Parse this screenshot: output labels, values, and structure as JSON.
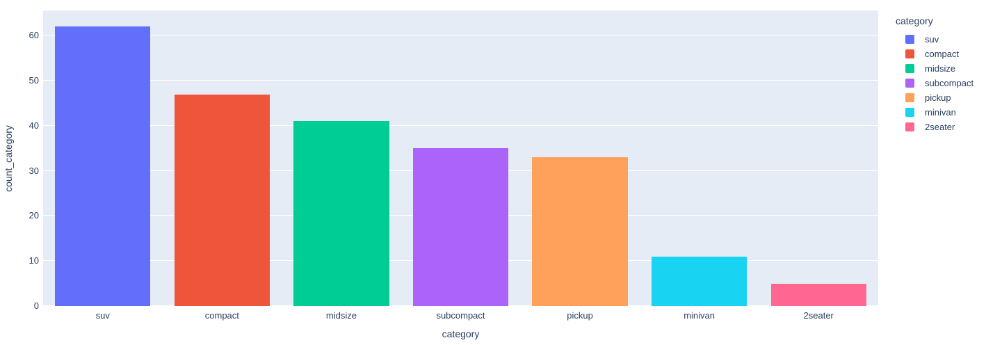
{
  "chart_data": {
    "type": "bar",
    "title": "",
    "xlabel": "category",
    "ylabel": "count_category",
    "categories": [
      "suv",
      "compact",
      "midsize",
      "subcompact",
      "pickup",
      "minivan",
      "2seater"
    ],
    "values": [
      62,
      47,
      41,
      35,
      33,
      11,
      5
    ],
    "colors": [
      "#636EFA",
      "#EF553B",
      "#00CC96",
      "#AB63FA",
      "#FFA15A",
      "#19D3F3",
      "#FF6692"
    ],
    "ylim": [
      0,
      65.6
    ],
    "yticks": [
      0,
      10,
      20,
      30,
      40,
      50,
      60
    ],
    "grid": true,
    "bar_band_fraction": 0.8,
    "legend": {
      "title": "category",
      "position": "right",
      "entries": [
        "suv",
        "compact",
        "midsize",
        "subcompact",
        "pickup",
        "minivan",
        "2seater"
      ]
    }
  },
  "colors": {
    "paper_background": "#FFFFFF",
    "plot_background": "#E5ECF6",
    "gridline": "#FFFFFF",
    "text": "#2A3F5F"
  }
}
